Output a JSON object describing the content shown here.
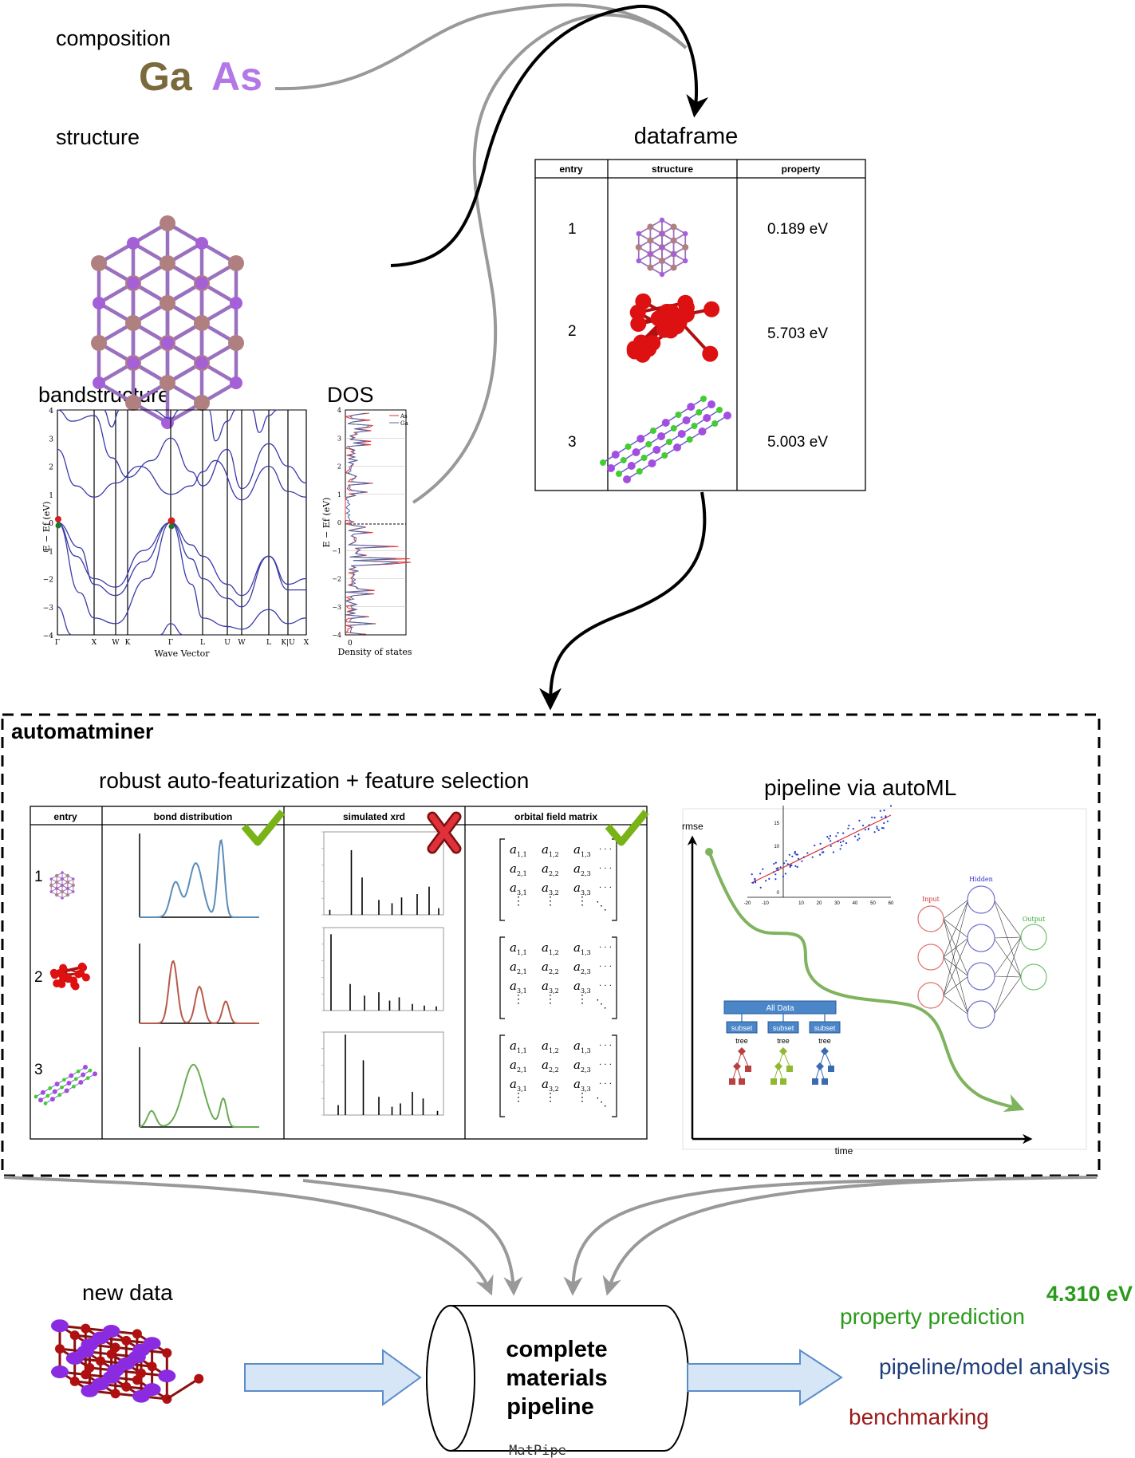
{
  "inputs": {
    "composition_label": "composition",
    "element_ga": "Ga",
    "element_as": "As",
    "structure_label": "structure",
    "bandstructure_label": "bandstructure",
    "dos_label": "DOS"
  },
  "bandstructure_plot": {
    "y_ticks": [
      "4",
      "3",
      "2",
      "1",
      "0",
      "−1",
      "−2",
      "−3",
      "−4"
    ],
    "y_label": "E − Ef (eV)",
    "x_ticks": [
      "Γ",
      "X",
      "W",
      "K",
      "Γ",
      "L",
      "U",
      "W",
      "L",
      "K|U",
      "X"
    ],
    "x_label": "Wave Vector"
  },
  "dos_plot": {
    "y_ticks": [
      "4",
      "3",
      "2",
      "1",
      "0",
      "−1",
      "−2",
      "−3",
      "−4"
    ],
    "y_label": "E − Ef (eV)",
    "x_label": "Density of states",
    "x_tick": "0",
    "legend": [
      "As",
      "Ga"
    ]
  },
  "dataframe": {
    "title": "dataframe",
    "headers": [
      "entry",
      "structure",
      "property"
    ],
    "rows": [
      {
        "entry": "1",
        "property": "0.189 eV"
      },
      {
        "entry": "2",
        "property": "5.703 eV"
      },
      {
        "entry": "3",
        "property": "5.003 eV"
      }
    ]
  },
  "automatminer": {
    "title": "automatminer",
    "featurization_title": "robust auto-featurization + feature selection",
    "feature_headers": [
      "entry",
      "bond distribution",
      "simulated xrd",
      "orbital field matrix"
    ],
    "entries": [
      "1",
      "2",
      "3"
    ],
    "bond_colors": [
      "#5b8db8",
      "#b85a4a",
      "#6aab54"
    ],
    "pipeline_title": "pipeline via autoML",
    "axis_y": "rmse",
    "axis_x": "time",
    "tree": {
      "top": "All Data",
      "subset": "subset",
      "tree": "tree"
    },
    "nn": {
      "input": "Input",
      "hidden": "Hidden",
      "output": "Output"
    }
  },
  "output": {
    "new_data_label": "new data",
    "pipeline_line1": "complete",
    "pipeline_line2": "materials",
    "pipeline_line3": "pipeline",
    "pipeline_code": "MatPipe",
    "value": "4.310 eV",
    "property_prediction": "property prediction",
    "analysis": "pipeline/model analysis",
    "benchmarking": "benchmarking"
  },
  "colors": {
    "ga": "#7a6a3c",
    "as": "#b377e6",
    "prediction": "#2a9a1a",
    "analysis": "#1f3f7a",
    "benchmark": "#9a1a1a",
    "check": "#7ab317",
    "cross": "#d8252f",
    "arrow_fill": "#d6e6f6",
    "arrow_stroke": "#5b8ec9"
  }
}
